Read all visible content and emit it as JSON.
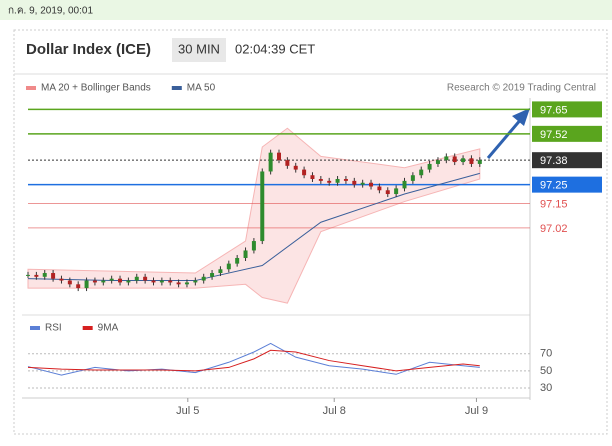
{
  "header": {
    "timestamp": "ก.ค. 9, 2019, 00:01"
  },
  "chart_data": {
    "type": "candlestick",
    "title": "Dollar Index (ICE)",
    "interval": "30 MIN",
    "time": "02:04:39 CET",
    "credit": "Research © 2019 Trading Central",
    "legend": [
      {
        "name": "MA 20 + Bollinger Bands",
        "color": "#f08a8a"
      },
      {
        "name": "MA 50",
        "color": "#3a5f9a"
      }
    ],
    "xlim": [
      0,
      60
    ],
    "xticks": [
      {
        "value": 19.1,
        "label": "Jul 5"
      },
      {
        "value": 36.6,
        "label": "Jul 8"
      },
      {
        "value": 53.6,
        "label": "Jul 9"
      }
    ],
    "ylim": [
      96.61,
      97.7
    ],
    "closes": [
      96.77,
      96.76,
      96.78,
      96.75,
      96.74,
      96.72,
      96.7,
      96.74,
      96.73,
      96.74,
      96.75,
      96.73,
      96.74,
      96.76,
      96.74,
      96.73,
      96.74,
      96.73,
      96.72,
      96.73,
      96.74,
      96.76,
      96.78,
      96.8,
      96.83,
      96.86,
      96.9,
      96.95,
      97.32,
      97.42,
      97.38,
      97.35,
      97.33,
      97.3,
      97.28,
      97.27,
      97.26,
      97.28,
      97.27,
      97.25,
      97.26,
      97.24,
      97.22,
      97.2,
      97.23,
      97.27,
      97.3,
      97.33,
      97.36,
      97.38,
      97.4,
      97.37,
      97.39,
      97.36,
      97.38
    ],
    "ma50": {
      "x": [
        0,
        10,
        20,
        28,
        35,
        45,
        54
      ],
      "values": [
        96.75,
        96.74,
        96.74,
        96.82,
        97.05,
        97.2,
        97.31
      ]
    },
    "band": {
      "x": [
        0,
        10,
        20,
        26,
        28,
        31,
        35,
        45,
        54
      ],
      "upper": [
        96.8,
        96.79,
        96.78,
        96.95,
        97.45,
        97.55,
        97.4,
        97.34,
        97.44
      ],
      "lower": [
        96.7,
        96.7,
        96.7,
        96.72,
        96.65,
        96.62,
        97.0,
        97.16,
        97.28
      ]
    },
    "levels": [
      {
        "value": 97.65,
        "label": "97.65",
        "color": "#5aa51e",
        "boxed": true
      },
      {
        "value": 97.52,
        "label": "97.52",
        "color": "#5aa51e",
        "boxed": true
      },
      {
        "value": 97.38,
        "label": "97.38",
        "color": "#333333",
        "boxed": true,
        "dotted": true
      },
      {
        "value": 97.25,
        "label": "97.25",
        "color": "#1e6fe0",
        "boxed": true
      },
      {
        "value": 97.15,
        "label": "97.15",
        "color": "#e05050",
        "boxed": false
      },
      {
        "value": 97.02,
        "label": "97.02",
        "color": "#e05050",
        "boxed": false
      }
    ],
    "rsi": {
      "legend": [
        {
          "name": "RSI",
          "color": "#5b7fd6"
        },
        {
          "name": "9MA",
          "color": "#d62020"
        }
      ],
      "ylim": [
        16,
        86
      ],
      "yticks": [
        70,
        50,
        30
      ],
      "x": [
        0,
        4,
        8,
        12,
        16,
        20,
        24,
        27,
        29,
        32,
        36,
        40,
        44,
        48,
        52,
        54
      ],
      "values": [
        55,
        45,
        54,
        50,
        52,
        48,
        60,
        72,
        82,
        66,
        56,
        52,
        46,
        60,
        56,
        54
      ],
      "ma": [
        54,
        52,
        51,
        51,
        51,
        50,
        54,
        64,
        74,
        72,
        62,
        56,
        50,
        54,
        58,
        56
      ]
    }
  }
}
